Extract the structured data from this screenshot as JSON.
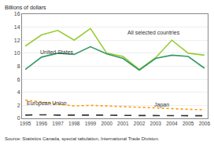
{
  "chart_data": {
    "type": "line",
    "ylabel": "Billions of dollars",
    "x": [
      1995,
      1996,
      1997,
      1998,
      1999,
      2000,
      2001,
      2002,
      2003,
      2004,
      2005,
      2006
    ],
    "series": [
      {
        "name": "All selected countries",
        "color": "#99cc33",
        "line_style": "solid",
        "values": [
          11.1,
          12.8,
          13.5,
          12.0,
          13.8,
          10.0,
          9.5,
          7.5,
          9.3,
          12.0,
          10.0,
          9.7
        ]
      },
      {
        "name": "United States",
        "color": "#339966",
        "line_style": "solid",
        "values": [
          7.5,
          9.4,
          10.0,
          9.8,
          11.0,
          9.9,
          9.2,
          7.4,
          9.2,
          9.7,
          9.5,
          7.7
        ]
      },
      {
        "name": "European Union",
        "color": "#ff9900",
        "line_style": "dotted",
        "values": [
          2.8,
          2.5,
          2.2,
          1.9,
          2.0,
          1.9,
          1.8,
          1.7,
          1.6,
          1.5,
          1.4,
          1.3
        ]
      },
      {
        "name": "Japan",
        "color": "#333333",
        "line_style": "dashed",
        "values": [
          0.5,
          0.55,
          0.5,
          0.5,
          0.55,
          0.5,
          0.45,
          0.45,
          0.45,
          0.45,
          0.45,
          0.4
        ]
      }
    ],
    "xlim": [
      1994.8,
      2006.2
    ],
    "xticks": [
      1995,
      1996,
      1997,
      1998,
      1999,
      2000,
      2001,
      2002,
      2003,
      2004,
      2005,
      2006
    ],
    "ylim": [
      0,
      16
    ],
    "yticks": [
      0,
      2,
      4,
      6,
      8,
      10,
      12,
      14,
      16
    ],
    "grid": true,
    "annotations": [
      {
        "text": "All selected countries",
        "x": 2001.2,
        "y": 12.5
      },
      {
        "text": "United States",
        "x": 1995.8,
        "y": 9.55
      },
      {
        "text": "European Union",
        "x": 1995.0,
        "y": 1.55
      },
      {
        "text": "Japan",
        "x": 2002.8,
        "y": 1.3
      },
      {
        "text": "Source: Statistics Canada, special tabulation, International Trade Division."
      }
    ]
  }
}
